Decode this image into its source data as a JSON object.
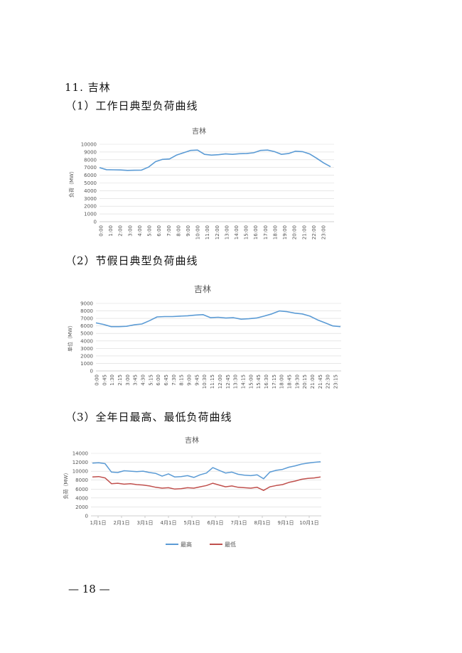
{
  "section_title": "11. 吉林",
  "sub1": "（1）工作日典型负荷曲线",
  "sub2": "（2）节假日典型负荷曲线",
  "sub3": "（3）全年日最高、最低负荷曲线",
  "page_number": "— 18 —",
  "colors": {
    "blue": "#5b9bd5",
    "red": "#c0504d"
  },
  "chart_data": [
    {
      "type": "line",
      "title": "吉林",
      "ylabel": "负荷（MW）",
      "ylim": [
        0,
        10000
      ],
      "y_ticks": [
        "0",
        "1000",
        "2000",
        "3000",
        "4000",
        "5000",
        "6000",
        "7000",
        "8000",
        "9000",
        "10000"
      ],
      "x_ticks": [
        "0:00",
        "1:00",
        "2:00",
        "3:00",
        "4:00",
        "5:00",
        "6:00",
        "7:00",
        "8:00",
        "9:00",
        "10:00",
        "11:00",
        "12:00",
        "13:00",
        "14:00",
        "15:00",
        "16:00",
        "17:00",
        "18:00",
        "19:00",
        "20:00",
        "21:00",
        "22:00",
        "23:00"
      ],
      "series": [
        {
          "values": [
            6980,
            6720,
            6700,
            6680,
            6620,
            6640,
            6660,
            7050,
            7750,
            8050,
            8100,
            8600,
            8900,
            9200,
            9250,
            8700,
            8600,
            8650,
            8750,
            8700,
            8780,
            8800,
            8900,
            9200,
            9250,
            9050,
            8700,
            8800,
            9100,
            9050,
            8750,
            8200,
            7600,
            7100
          ]
        }
      ]
    },
    {
      "type": "line",
      "title": "吉林",
      "ylabel": "单位（MW）",
      "ylim": [
        0,
        9000
      ],
      "y_ticks": [
        "0",
        "1000",
        "2000",
        "3000",
        "4000",
        "5000",
        "6000",
        "7000",
        "8000",
        "9000"
      ],
      "x_ticks": [
        "0:00",
        "0:45",
        "1:30",
        "2:15",
        "3:00",
        "3:45",
        "4:30",
        "5:15",
        "6:00",
        "6:45",
        "7:30",
        "8:15",
        "9:00",
        "9:45",
        "10:30",
        "11:15",
        "12:00",
        "12:45",
        "13:30",
        "14:15",
        "15:00",
        "15:45",
        "16:30",
        "17:15",
        "18:00",
        "18:45",
        "19:30",
        "20:15",
        "21:00",
        "21:45",
        "22:30",
        "23:15"
      ],
      "series": [
        {
          "values": [
            6400,
            6200,
            5900,
            5900,
            5950,
            6150,
            6250,
            6700,
            7200,
            7250,
            7250,
            7300,
            7350,
            7450,
            7500,
            7100,
            7150,
            7050,
            7100,
            6900,
            6950,
            7050,
            7300,
            7600,
            8000,
            7900,
            7700,
            7600,
            7300,
            6800,
            6400,
            6000,
            5900
          ]
        }
      ]
    },
    {
      "type": "line",
      "title": "吉林",
      "ylabel": "负荷（MW）",
      "ylim": [
        0,
        14000
      ],
      "y_ticks": [
        "0",
        "2000",
        "4000",
        "6000",
        "8000",
        "10000",
        "12000",
        "14000"
      ],
      "x_ticks": [
        "1月1日",
        "2月1日",
        "3月1日",
        "4月1日",
        "5月1日",
        "6月1日",
        "7月1日",
        "8月1日",
        "9月1日",
        "10月1日"
      ],
      "legend_position": "bottom",
      "series": [
        {
          "name": "最高",
          "values": [
            11800,
            11900,
            11700,
            9800,
            9700,
            10100,
            10000,
            9900,
            10000,
            9700,
            9500,
            8900,
            9400,
            8700,
            8800,
            9000,
            8600,
            9200,
            9600,
            10800,
            10200,
            9600,
            9800,
            9300,
            9100,
            9000,
            9200,
            8300,
            9800,
            10200,
            10400,
            10900,
            11200,
            11600,
            11800,
            12000,
            12100
          ]
        },
        {
          "name": "最低",
          "values": [
            8700,
            8800,
            8500,
            7200,
            7300,
            7100,
            7200,
            7000,
            6900,
            6700,
            6400,
            6200,
            6300,
            6000,
            6100,
            6300,
            6200,
            6500,
            6800,
            7300,
            6900,
            6500,
            6700,
            6400,
            6300,
            6200,
            6400,
            5700,
            6500,
            6800,
            7000,
            7500,
            7800,
            8200,
            8400,
            8500,
            8700
          ]
        }
      ]
    }
  ]
}
